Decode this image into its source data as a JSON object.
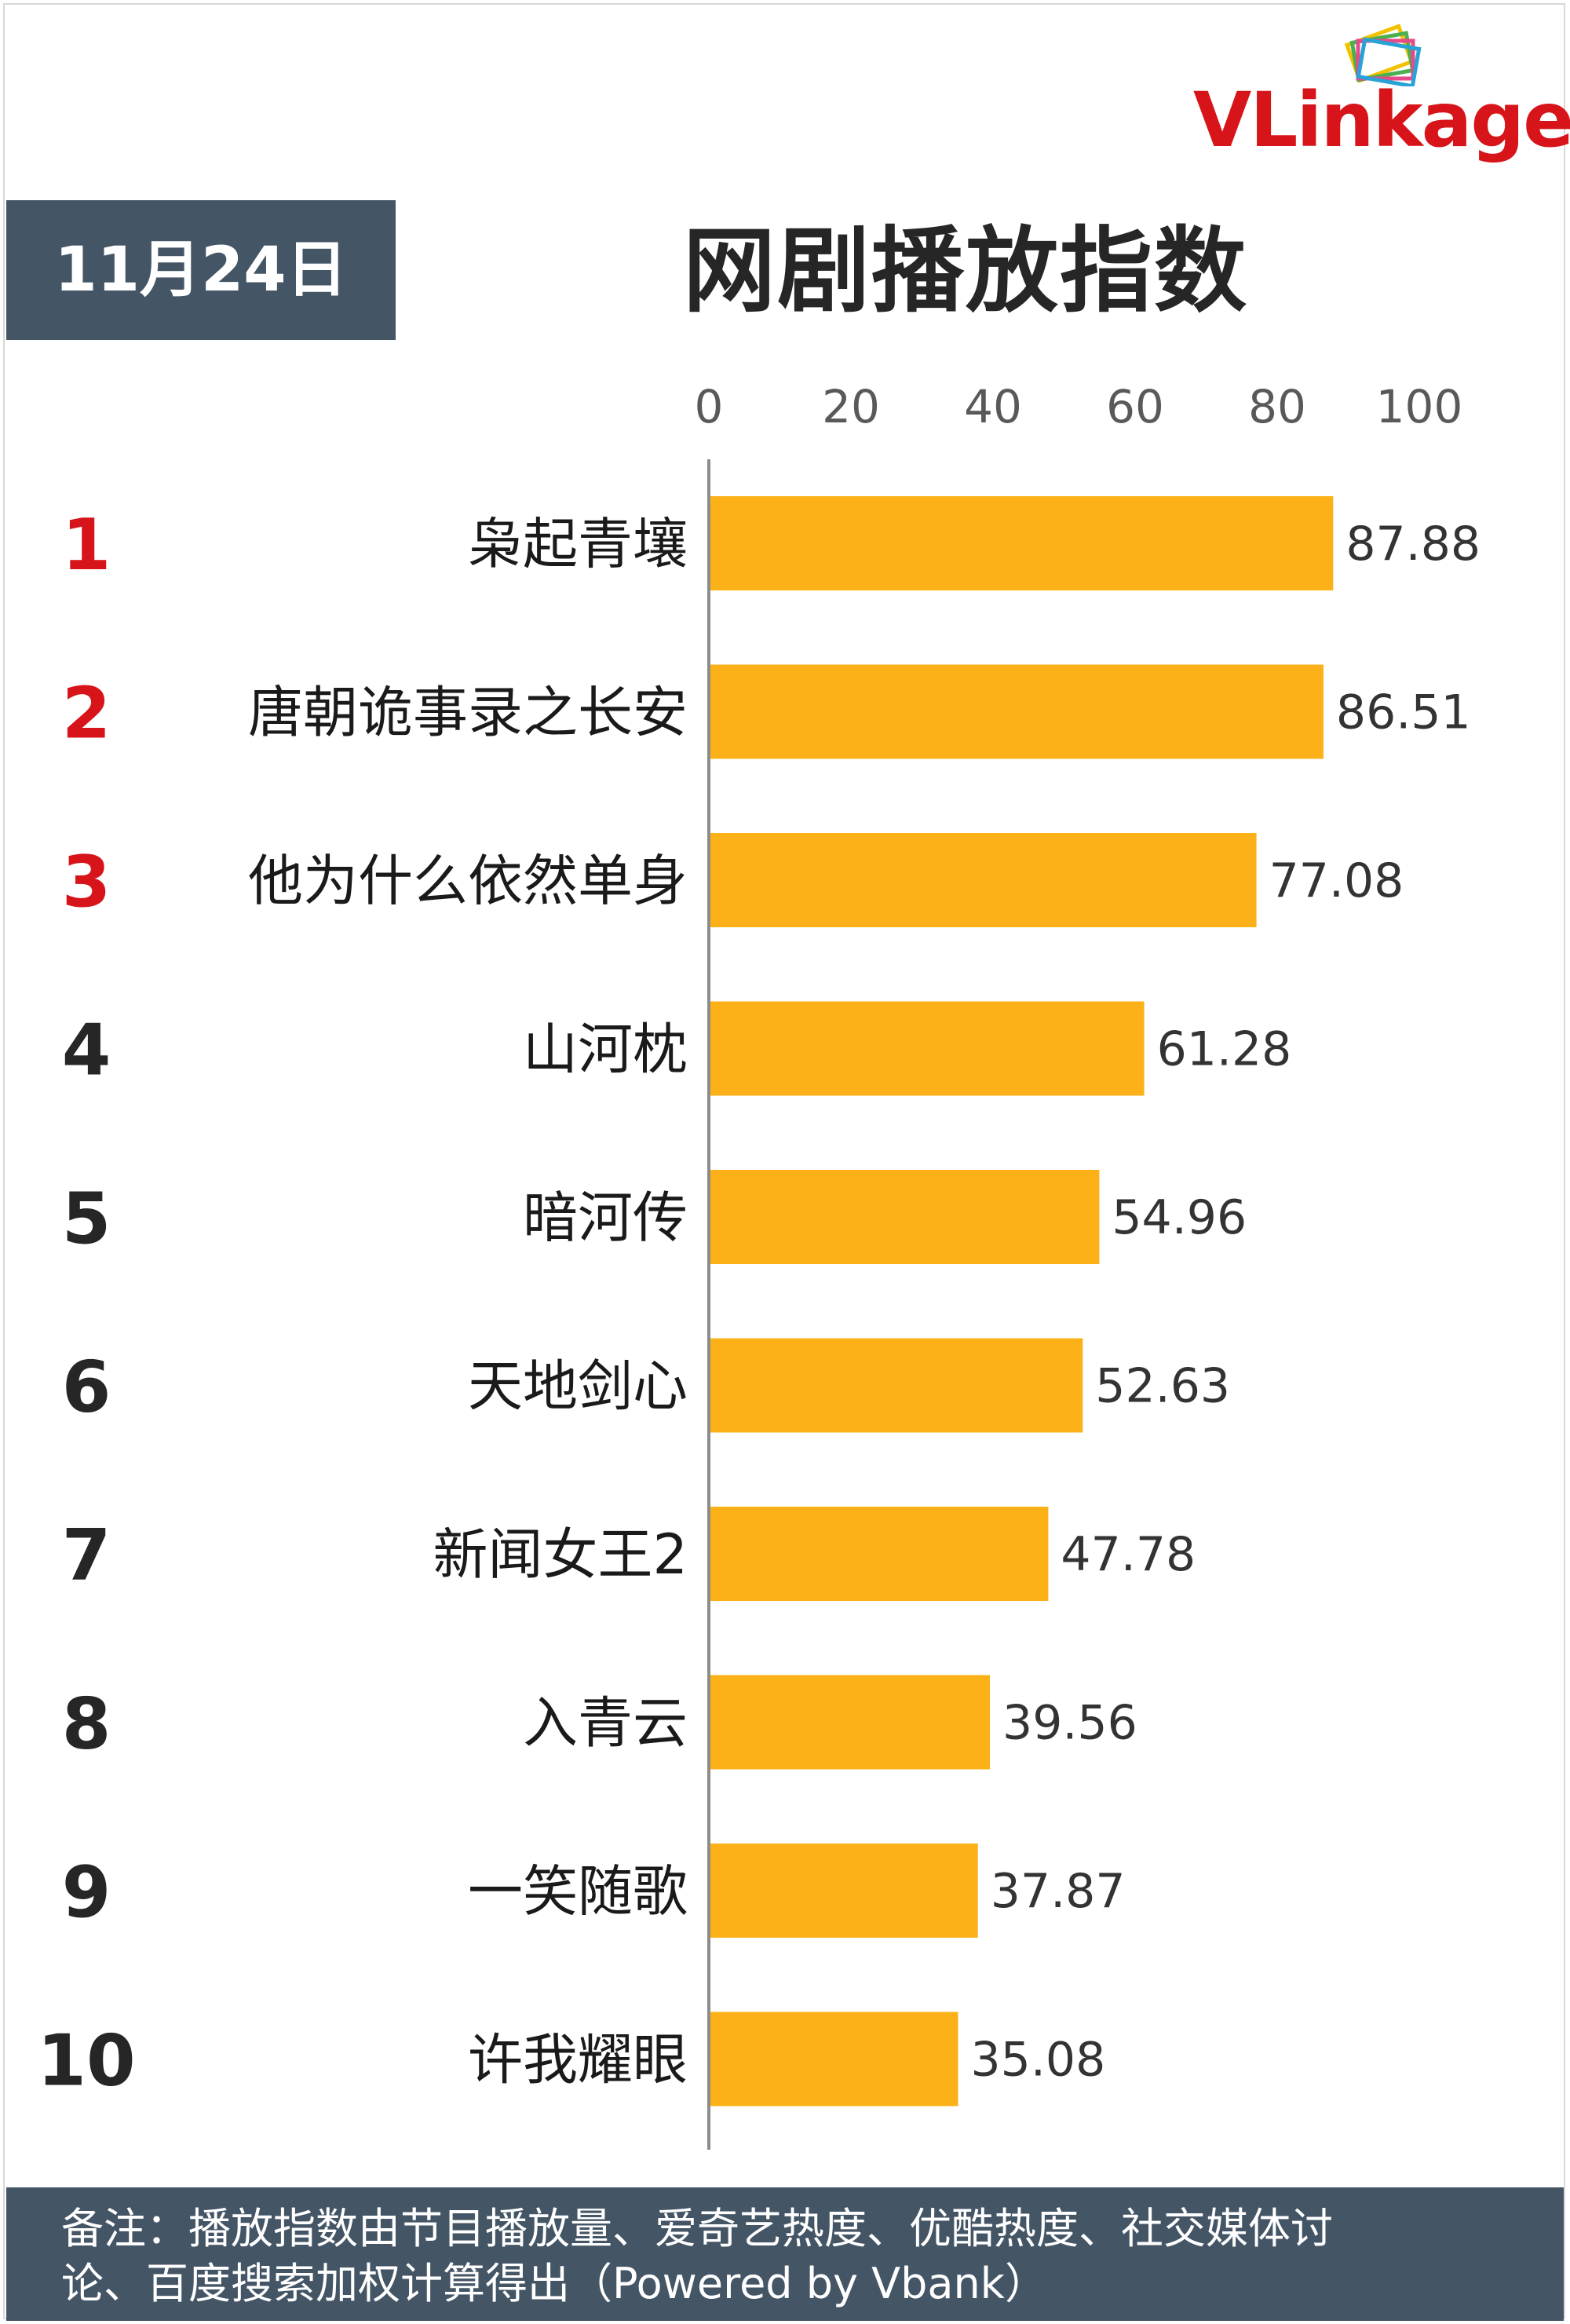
{
  "logo": {
    "text_v": "VL",
    "text_rest": "inkage",
    "mark": "stacked-frames-logo"
  },
  "date_badge": "11月24日",
  "title": "网剧播放指数",
  "chart_data": {
    "type": "bar",
    "orientation": "horizontal",
    "title": "网剧播放指数",
    "xlim": [
      0,
      100
    ],
    "x_ticks": [
      "0",
      "20",
      "40",
      "60",
      "80",
      "100"
    ],
    "ranks": [
      "1",
      "2",
      "3",
      "4",
      "5",
      "6",
      "7",
      "8",
      "9",
      "10"
    ],
    "categories": [
      "枭起青壤",
      "唐朝诡事录之长安",
      "他为什么依然单身",
      "山河枕",
      "暗河传",
      "天地剑心",
      "新闻女王2",
      "入青云",
      "一笑随歌",
      "许我耀眼"
    ],
    "values": [
      87.88,
      86.51,
      77.08,
      61.28,
      54.96,
      52.63,
      47.78,
      39.56,
      37.87,
      35.08
    ],
    "value_labels": [
      "87.88",
      "86.51",
      "77.08",
      "61.28",
      "54.96",
      "52.63",
      "47.78",
      "39.56",
      "37.87",
      "35.08"
    ],
    "bar_color": "#FBB117",
    "top_rank_color": "#D7141A",
    "rank_color": "#262626",
    "axis_color": "#8c8c8c"
  },
  "footer": {
    "line1": "备注：播放指数由节目播放量、爱奇艺热度、优酷热度、社交媒体讨",
    "line2": "论、百度搜索加权计算得出（Powered by Vbank）"
  }
}
